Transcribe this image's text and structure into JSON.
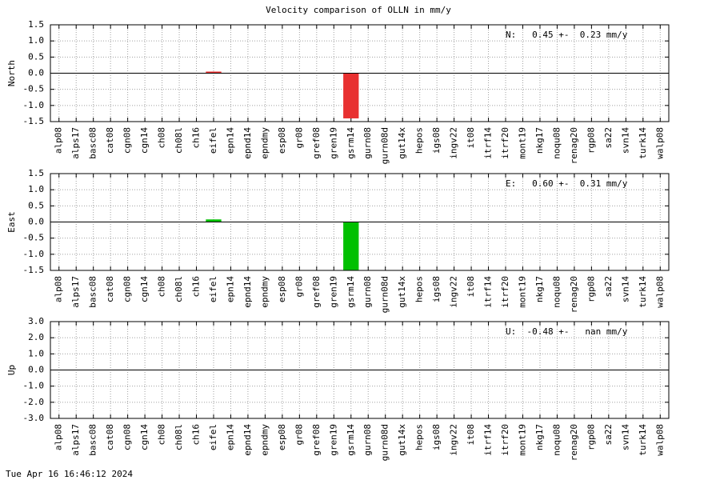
{
  "title": "Velocity comparison of OLLN in mm/y",
  "footer": "Tue Apr 16 16:46:12 2024",
  "chart_data": [
    {
      "type": "bar",
      "ylabel": "North",
      "annotation": "N:   0.45 +-  0.23 mm/y",
      "categories": [
        "alp08",
        "alps17",
        "basc08",
        "cat08",
        "cgn08",
        "cgn14",
        "ch08",
        "ch08l",
        "ch16",
        "eifel",
        "epn14",
        "epnd14",
        "epndmy",
        "esp08",
        "gr08",
        "gref08",
        "gren19",
        "gsrm14",
        "gurn08",
        "gurn08d",
        "gut14x",
        "hepos",
        "igs08",
        "ingv22",
        "it08",
        "itrf14",
        "itrf20",
        "mont19",
        "nkg17",
        "noqu08",
        "renag20",
        "rgp08",
        "sa22",
        "svn14",
        "turk14",
        "walp08"
      ],
      "values": [
        null,
        null,
        null,
        null,
        null,
        null,
        null,
        null,
        null,
        0.05,
        null,
        null,
        null,
        null,
        null,
        null,
        null,
        -1.4,
        null,
        null,
        null,
        null,
        null,
        null,
        null,
        null,
        null,
        null,
        null,
        null,
        null,
        null,
        null,
        null,
        null,
        null
      ],
      "color": "#e83030",
      "ylim": [
        -1.5,
        1.5
      ],
      "yticks": [
        -1.5,
        {
          "value": -1.0,
          "label": "-1.0"
        },
        -0.5,
        {
          "value": 0.0,
          "label": "0.0"
        },
        0.5,
        {
          "value": 1.0,
          "label": "1.0"
        },
        1.5
      ],
      "grid": true
    },
    {
      "type": "bar",
      "ylabel": "East",
      "annotation": "E:   0.60 +-  0.31 mm/y",
      "categories": [
        "alp08",
        "alps17",
        "basc08",
        "cat08",
        "cgn08",
        "cgn14",
        "ch08",
        "ch08l",
        "ch16",
        "eifel",
        "epn14",
        "epnd14",
        "epndmy",
        "esp08",
        "gr08",
        "gref08",
        "gren19",
        "gsrm14",
        "gurn08",
        "gurn08d",
        "gut14x",
        "hepos",
        "igs08",
        "ingv22",
        "it08",
        "itrf14",
        "itrf20",
        "mont19",
        "nkg17",
        "noqu08",
        "renag20",
        "rgp08",
        "sa22",
        "svn14",
        "turk14",
        "walp08"
      ],
      "values": [
        null,
        null,
        null,
        null,
        null,
        null,
        null,
        null,
        null,
        0.08,
        null,
        null,
        null,
        null,
        null,
        null,
        null,
        -1.5,
        null,
        null,
        null,
        null,
        null,
        null,
        null,
        null,
        null,
        null,
        null,
        null,
        null,
        null,
        null,
        null,
        null,
        null
      ],
      "color": "#00c000",
      "ylim": [
        -1.5,
        1.5
      ],
      "yticks": [
        -1.5,
        {
          "value": -1.0,
          "label": "-1.0"
        },
        -0.5,
        {
          "value": 0.0,
          "label": "0.0"
        },
        0.5,
        {
          "value": 1.0,
          "label": "1.0"
        },
        1.5
      ],
      "grid": true
    },
    {
      "type": "bar",
      "ylabel": "Up",
      "annotation": "U:  -0.48 +-   nan mm/y",
      "categories": [
        "alp08",
        "alps17",
        "basc08",
        "cat08",
        "cgn08",
        "cgn14",
        "ch08",
        "ch08l",
        "ch16",
        "eifel",
        "epn14",
        "epnd14",
        "epndmy",
        "esp08",
        "gr08",
        "gref08",
        "gren19",
        "gsrm14",
        "gurn08",
        "gurn08d",
        "gut14x",
        "hepos",
        "igs08",
        "ingv22",
        "it08",
        "itrf14",
        "itrf20",
        "mont19",
        "nkg17",
        "noqu08",
        "renag20",
        "rgp08",
        "sa22",
        "svn14",
        "turk14",
        "walp08"
      ],
      "values": [
        null,
        null,
        null,
        null,
        null,
        null,
        null,
        null,
        null,
        null,
        null,
        null,
        null,
        null,
        null,
        null,
        null,
        null,
        null,
        null,
        null,
        null,
        null,
        null,
        null,
        null,
        null,
        null,
        null,
        null,
        null,
        null,
        null,
        null,
        null,
        null
      ],
      "ylim": [
        -3.0,
        3.0
      ],
      "yticks": [
        {
          "value": -3.0,
          "label": "-3.0"
        },
        {
          "value": -2.0,
          "label": "-2.0"
        },
        {
          "value": -1.0,
          "label": "-1.0"
        },
        {
          "value": 0.0,
          "label": "0.0"
        },
        {
          "value": 1.0,
          "label": "1.0"
        },
        {
          "value": 2.0,
          "label": "2.0"
        },
        {
          "value": 3.0,
          "label": "3.0"
        }
      ],
      "grid": true
    }
  ]
}
